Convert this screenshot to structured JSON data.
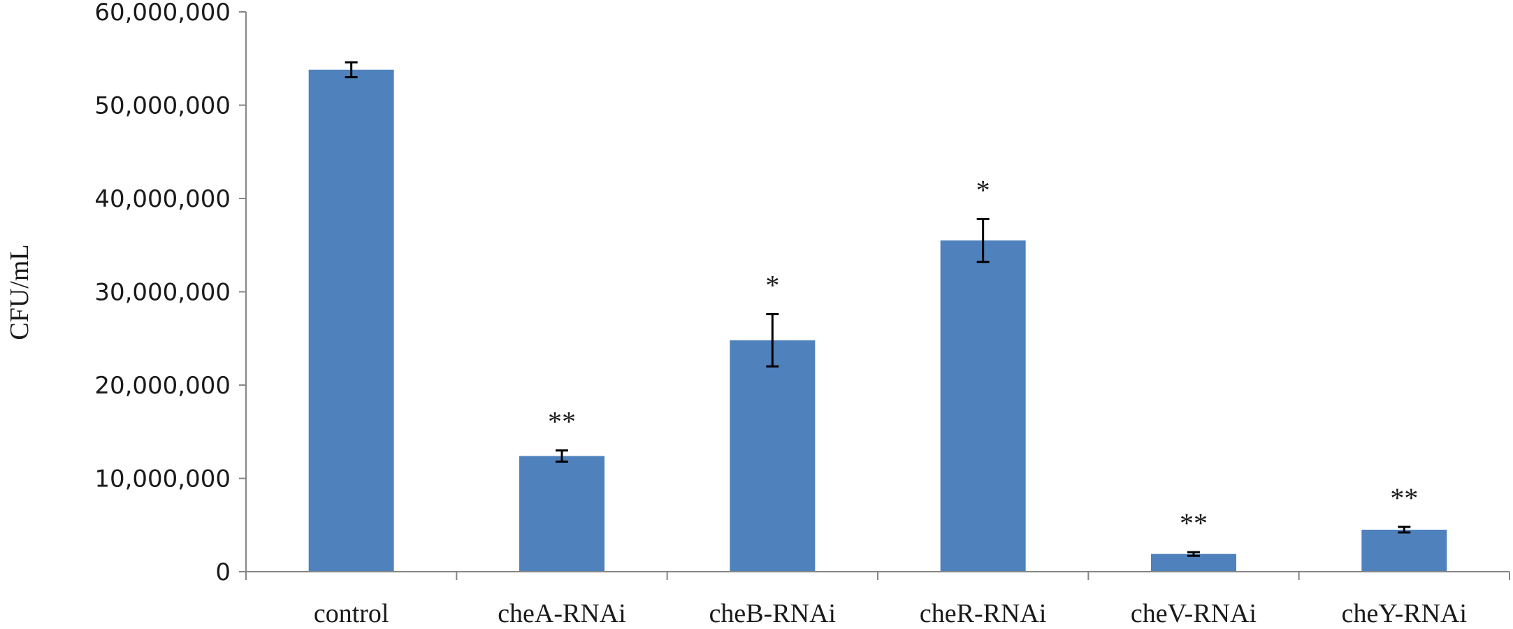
{
  "chart_data": {
    "type": "bar",
    "title": "",
    "xlabel": "",
    "ylabel": "CFU/mL",
    "ylim": [
      0,
      60000000
    ],
    "yticks": [
      0,
      10000000,
      20000000,
      30000000,
      40000000,
      50000000,
      60000000
    ],
    "ytick_labels": [
      "0",
      "10,000,000",
      "20,000,000",
      "30,000,000",
      "40,000,000",
      "50,000,000",
      "60,000,000"
    ],
    "grid": false,
    "bar_color": "#4f81bd",
    "categories": [
      "control",
      "cheA-RNAi",
      "cheB-RNAi",
      "cheR-RNAi",
      "cheV-RNAi",
      "cheY-RNAi"
    ],
    "values": [
      53800000,
      12400000,
      24800000,
      35500000,
      1900000,
      4500000
    ],
    "errors": [
      800000,
      600000,
      2800000,
      2300000,
      200000,
      300000
    ],
    "significance": [
      "",
      "**",
      "*",
      "*",
      "**",
      "**"
    ]
  }
}
